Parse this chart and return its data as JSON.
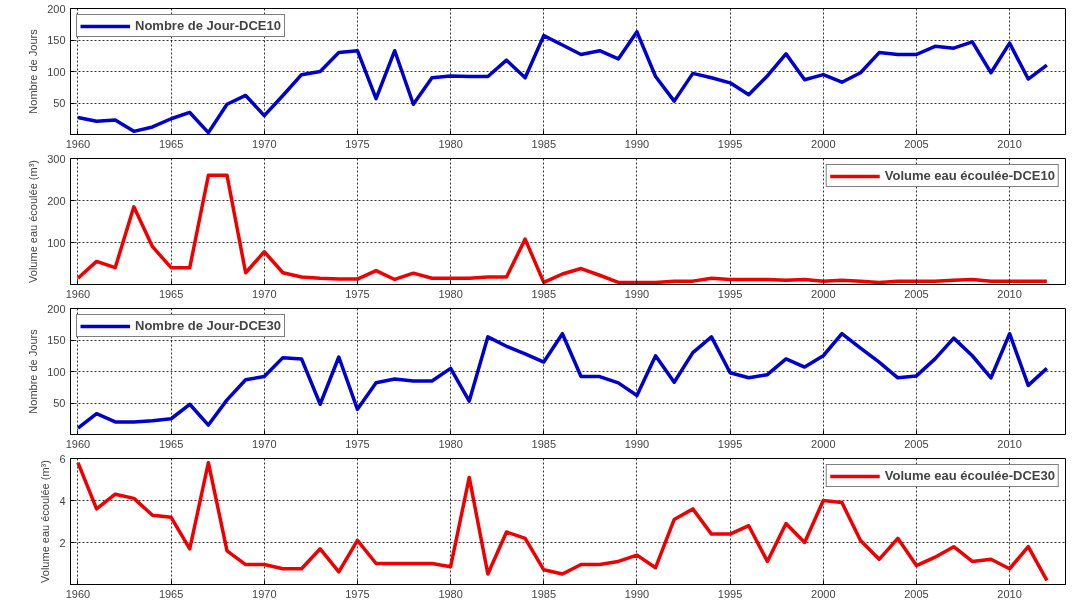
{
  "chart_data": [
    {
      "type": "line",
      "ylabel": "Nombre de Jours",
      "x": [
        1960,
        1961,
        1962,
        1963,
        1964,
        1965,
        1966,
        1967,
        1968,
        1969,
        1970,
        1971,
        1972,
        1973,
        1974,
        1975,
        1976,
        1977,
        1978,
        1979,
        1980,
        1981,
        1982,
        1983,
        1984,
        1985,
        1986,
        1987,
        1988,
        1989,
        1990,
        1991,
        1992,
        1993,
        1994,
        1995,
        1996,
        1997,
        1998,
        1999,
        2000,
        2001,
        2002,
        2003,
        2004,
        2005,
        2006,
        2007,
        2008,
        2009,
        2010,
        2011,
        2012
      ],
      "xlim": [
        1959.6,
        2013
      ],
      "xticks": [
        1960,
        1965,
        1970,
        1975,
        1980,
        1985,
        1990,
        1995,
        2000,
        2005,
        2010
      ],
      "ylim": [
        0,
        200
      ],
      "yticks": [
        50,
        100,
        150,
        200
      ],
      "grid": true,
      "legend": "top left",
      "series": [
        {
          "name": "Nombre de Jour-DCE10",
          "color": "#0000cc",
          "values": [
            27,
            21,
            23,
            5,
            12,
            25,
            35,
            3,
            48,
            62,
            30,
            62,
            95,
            100,
            130,
            133,
            57,
            133,
            48,
            90,
            93,
            92,
            92,
            118,
            90,
            157,
            142,
            127,
            133,
            120,
            163,
            92,
            53,
            97,
            90,
            82,
            63,
            93,
            128,
            87,
            95,
            83,
            98,
            130,
            127,
            127,
            140,
            137,
            147,
            98,
            145,
            88,
            110
          ]
        }
      ]
    },
    {
      "type": "line",
      "ylabel": "Volume eau écoulée (m³)",
      "x": [
        1960,
        1961,
        1962,
        1963,
        1964,
        1965,
        1966,
        1967,
        1968,
        1969,
        1970,
        1971,
        1972,
        1973,
        1974,
        1975,
        1976,
        1977,
        1978,
        1979,
        1980,
        1981,
        1982,
        1983,
        1984,
        1985,
        1986,
        1987,
        1988,
        1989,
        1990,
        1991,
        1992,
        1993,
        1994,
        1995,
        1996,
        1997,
        1998,
        1999,
        2000,
        2001,
        2002,
        2003,
        2004,
        2005,
        2006,
        2007,
        2008,
        2009,
        2010,
        2011,
        2012
      ],
      "xlim": [
        1959.6,
        2013
      ],
      "xticks": [
        1960,
        1965,
        1970,
        1975,
        1980,
        1985,
        1990,
        1995,
        2000,
        2005,
        2010
      ],
      "ylim": [
        0,
        300
      ],
      "yticks": [
        100,
        200,
        300
      ],
      "grid": true,
      "legend": "top right",
      "series": [
        {
          "name": "Volume eau écoulée-DCE10",
          "color": "#ee0000",
          "values": [
            15,
            55,
            40,
            185,
            90,
            40,
            40,
            260,
            260,
            28,
            78,
            28,
            18,
            15,
            13,
            13,
            33,
            12,
            27,
            15,
            15,
            15,
            18,
            18,
            108,
            5,
            25,
            38,
            22,
            5,
            5,
            5,
            8,
            8,
            15,
            12,
            12,
            12,
            10,
            12,
            8,
            10,
            8,
            5,
            8,
            8,
            8,
            10,
            12,
            8,
            8,
            8,
            8
          ]
        }
      ]
    },
    {
      "type": "line",
      "ylabel": "Nombre de Jours",
      "x": [
        1960,
        1961,
        1962,
        1963,
        1964,
        1965,
        1966,
        1967,
        1968,
        1969,
        1970,
        1971,
        1972,
        1973,
        1974,
        1975,
        1976,
        1977,
        1978,
        1979,
        1980,
        1981,
        1982,
        1983,
        1984,
        1985,
        1986,
        1987,
        1988,
        1989,
        1990,
        1991,
        1992,
        1993,
        1994,
        1995,
        1996,
        1997,
        1998,
        1999,
        2000,
        2001,
        2002,
        2003,
        2004,
        2005,
        2006,
        2007,
        2008,
        2009,
        2010,
        2011,
        2012
      ],
      "xlim": [
        1959.6,
        2013
      ],
      "xticks": [
        1960,
        1965,
        1970,
        1975,
        1980,
        1985,
        1990,
        1995,
        2000,
        2005,
        2010
      ],
      "ylim": [
        0,
        200
      ],
      "yticks": [
        50,
        100,
        150,
        200
      ],
      "grid": true,
      "legend": "top left",
      "series": [
        {
          "name": "Nombre de Jour-DCE30",
          "color": "#0000cc",
          "values": [
            10,
            33,
            20,
            20,
            22,
            25,
            48,
            15,
            55,
            87,
            92,
            122,
            120,
            48,
            123,
            40,
            82,
            88,
            85,
            85,
            105,
            53,
            155,
            140,
            128,
            115,
            160,
            92,
            92,
            82,
            62,
            125,
            83,
            130,
            155,
            98,
            90,
            95,
            120,
            107,
            125,
            160,
            137,
            115,
            90,
            93,
            120,
            153,
            125,
            90,
            160,
            78,
            105
          ]
        }
      ]
    },
    {
      "type": "line",
      "ylabel": "Volume eau écoulée (m³)",
      "x": [
        1960,
        1961,
        1962,
        1963,
        1964,
        1965,
        1966,
        1967,
        1968,
        1969,
        1970,
        1971,
        1972,
        1973,
        1974,
        1975,
        1976,
        1977,
        1978,
        1979,
        1980,
        1981,
        1982,
        1983,
        1984,
        1985,
        1986,
        1987,
        1988,
        1989,
        1990,
        1991,
        1992,
        1993,
        1994,
        1995,
        1996,
        1997,
        1998,
        1999,
        2000,
        2001,
        2002,
        2003,
        2004,
        2005,
        2006,
        2007,
        2008,
        2009,
        2010,
        2011,
        2012
      ],
      "xlim": [
        1959.6,
        2013
      ],
      "xticks": [
        1960,
        1965,
        1970,
        1975,
        1980,
        1985,
        1990,
        1995,
        2000,
        2005,
        2010
      ],
      "ylim": [
        0,
        6
      ],
      "yticks": [
        2,
        4,
        6
      ],
      "grid": true,
      "legend": "top right",
      "series": [
        {
          "name": "Volume eau écoulée-DCE30",
          "color": "#ee0000",
          "values": [
            5.8,
            3.6,
            4.3,
            4.1,
            3.3,
            3.2,
            1.7,
            5.8,
            1.6,
            0.95,
            0.95,
            0.75,
            0.75,
            1.7,
            0.6,
            2.1,
            1.0,
            1.0,
            1.0,
            1.0,
            0.85,
            5.1,
            0.5,
            2.5,
            2.2,
            0.7,
            0.5,
            0.95,
            0.95,
            1.1,
            1.4,
            0.8,
            3.1,
            3.6,
            2.4,
            2.4,
            2.8,
            1.1,
            2.9,
            2.0,
            4.0,
            3.9,
            2.1,
            1.2,
            2.2,
            0.9,
            1.3,
            1.8,
            1.1,
            1.2,
            0.75,
            1.8,
            0.2
          ]
        }
      ]
    }
  ]
}
